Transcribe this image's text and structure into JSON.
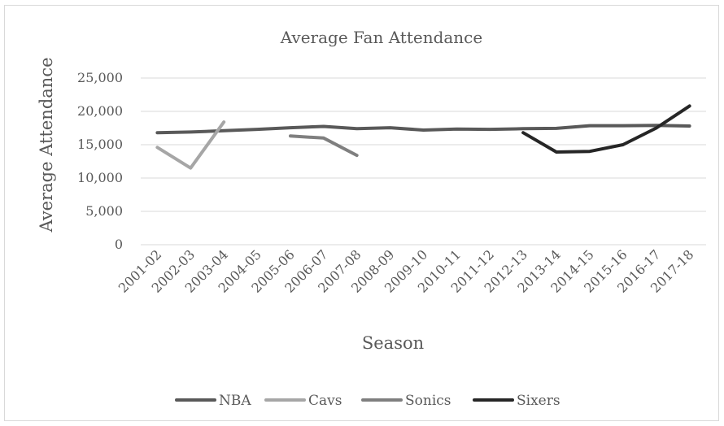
{
  "chart_data": {
    "type": "line",
    "title": "Average Fan Attendance",
    "xlabel": "Season",
    "ylabel": "Average Attendance",
    "ylim": [
      0,
      25000
    ],
    "yticks": [
      "0",
      "5,000",
      "10,000",
      "15,000",
      "20,000",
      "25,000"
    ],
    "categories": [
      "2001-02",
      "2002-03",
      "2003-04",
      "2004-05",
      "2005-06",
      "2006-07",
      "2007-08",
      "2008-09",
      "2009-10",
      "2010-11",
      "2011-12",
      "2012-13",
      "2013-14",
      "2014-15",
      "2015-16",
      "2016-17",
      "2017-18"
    ],
    "grid": true,
    "legend_position": "bottom",
    "series": [
      {
        "name": "NBA",
        "color": "#595959",
        "values": [
          16800,
          16900,
          17100,
          17300,
          17550,
          17750,
          17400,
          17550,
          17200,
          17350,
          17300,
          17400,
          17450,
          17850,
          17850,
          17900,
          17800
        ]
      },
      {
        "name": "Cavs",
        "color": "#a6a6a6",
        "values": [
          14600,
          11500,
          18400,
          null,
          null,
          null,
          null,
          null,
          null,
          null,
          null,
          null,
          null,
          null,
          null,
          null,
          null
        ]
      },
      {
        "name": "Sonics",
        "color": "#7f7f7f",
        "values": [
          null,
          null,
          null,
          null,
          16300,
          16000,
          13400,
          null,
          null,
          null,
          null,
          null,
          null,
          null,
          null,
          null,
          null
        ]
      },
      {
        "name": "Sixers",
        "color": "#262626",
        "values": [
          null,
          null,
          null,
          null,
          null,
          null,
          null,
          null,
          null,
          null,
          null,
          16800,
          13900,
          14000,
          15000,
          17500,
          20800
        ]
      }
    ]
  }
}
